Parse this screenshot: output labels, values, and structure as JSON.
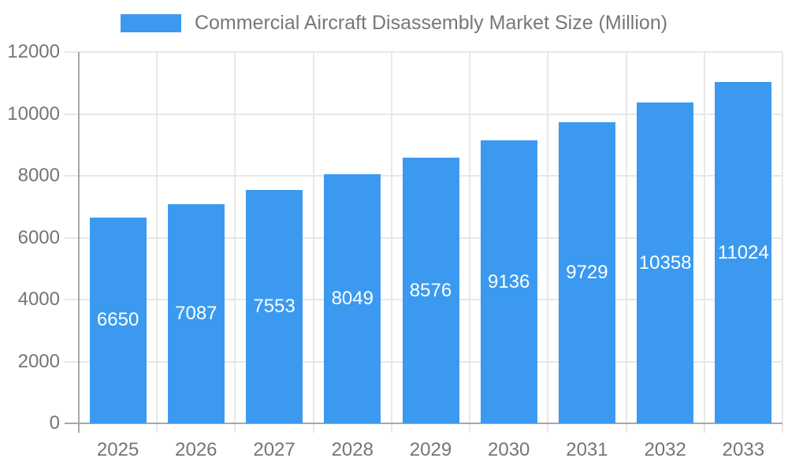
{
  "page": {
    "background_color": "#ffffff"
  },
  "chart_data": {
    "type": "bar",
    "title": "Commercial Aircraft Disassembly Market Size (Million)",
    "categories": [
      "2025",
      "2026",
      "2027",
      "2028",
      "2029",
      "2030",
      "2031",
      "2032",
      "2033"
    ],
    "series": [
      {
        "name": "Commercial Aircraft Disassembly Market Size (Million)",
        "values": [
          6650,
          7087,
          7553,
          8049,
          8576,
          9136,
          9729,
          10358,
          11024
        ]
      }
    ],
    "data_labels": [
      "6650",
      "7087",
      "7553",
      "8049",
      "8576",
      "9136",
      "9729",
      "10358",
      "11024"
    ],
    "xlabel": "",
    "ylabel": "",
    "ylim": [
      0,
      12000
    ],
    "yticks": [
      "0",
      "2000",
      "4000",
      "6000",
      "8000",
      "10000",
      "12000"
    ],
    "grid": "on",
    "legend_position": "top",
    "colors": {
      "bar": "#3b9af0",
      "grid": "#e8e8e8",
      "axis_line": "#a8a8a8",
      "tick_text": "#757575",
      "legend_text": "#777777",
      "bar_label_text": "#ffffff"
    }
  }
}
